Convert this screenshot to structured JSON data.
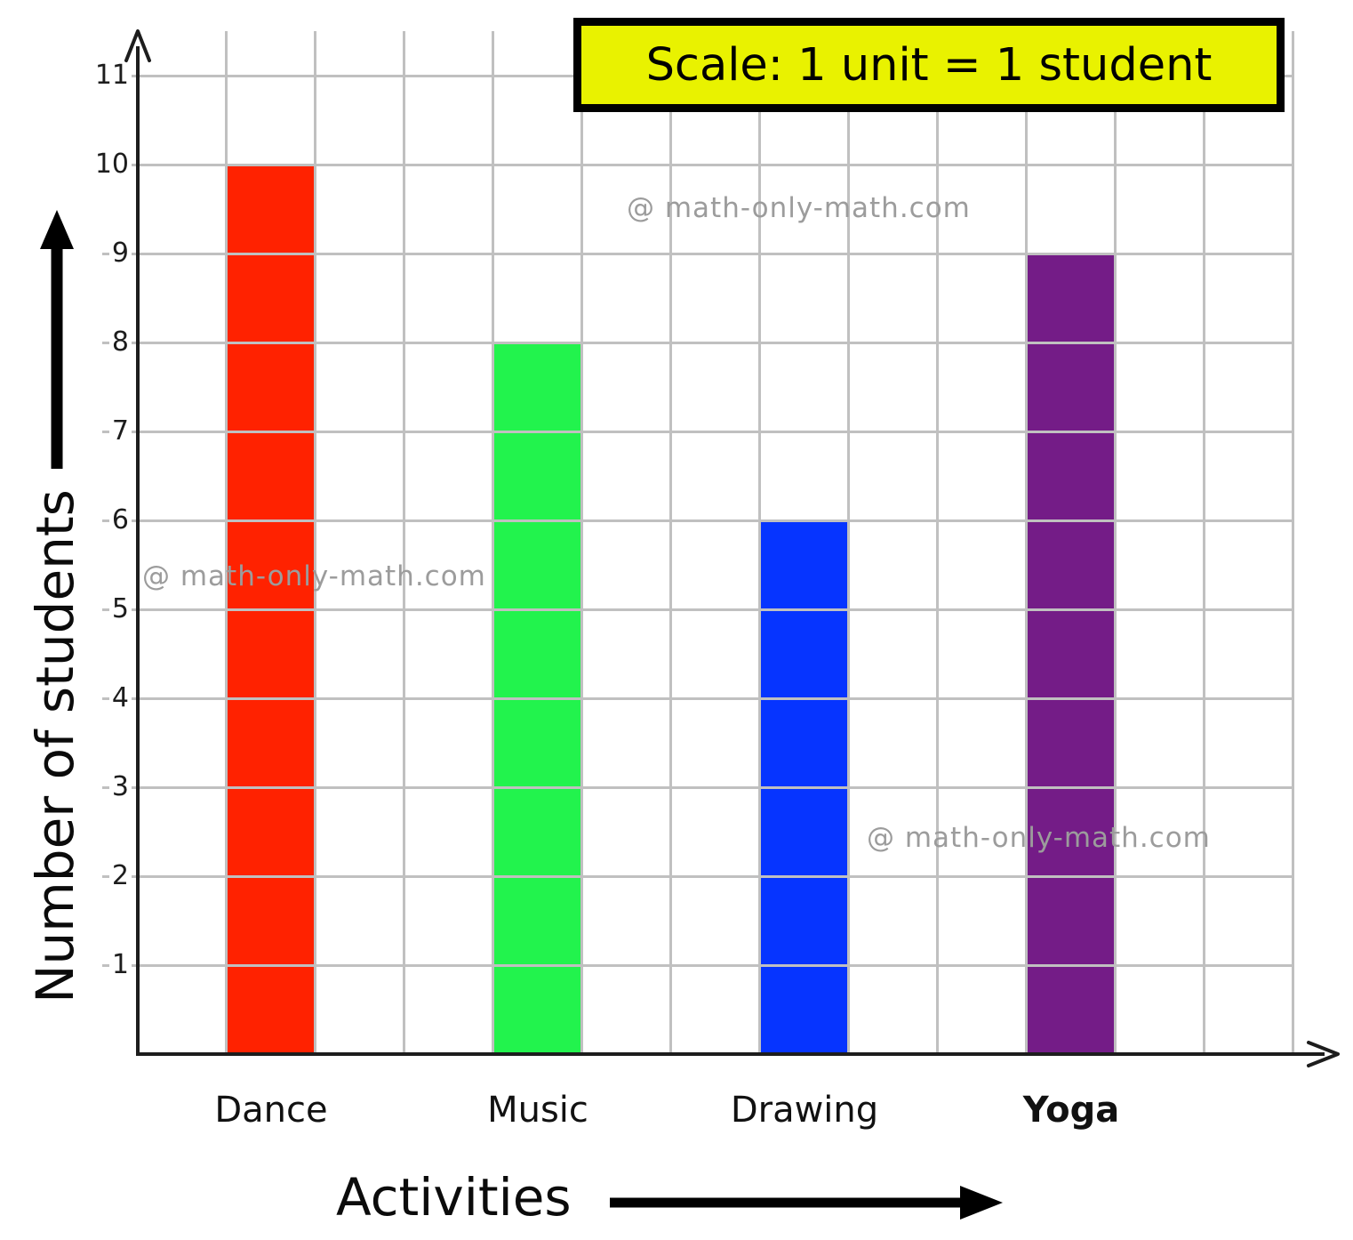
{
  "scale_box": {
    "label": "Scale: 1 unit = 1 student"
  },
  "watermark": {
    "text": "@ math-only-math.com",
    "color": "#9c9c9c"
  },
  "chart_data": {
    "type": "bar",
    "title": "Scale: 1 unit = 1 student",
    "categories": [
      "Dance",
      "Music",
      "Drawing",
      "Yoga"
    ],
    "values": [
      10,
      8,
      6,
      9
    ],
    "bar_colors": [
      "#ff2200",
      "#22f34d",
      "#0634ff",
      "#741c87"
    ],
    "category_bold": [
      false,
      false,
      false,
      true
    ],
    "xlabel": "Activities",
    "ylabel": "Number of students",
    "yticks": [
      1,
      2,
      3,
      4,
      5,
      6,
      7,
      8,
      9,
      10,
      11
    ],
    "ylim": [
      0,
      11.5
    ],
    "xlim_units": [
      0,
      13
    ],
    "grid": true,
    "legend_position": "top-right",
    "axis_color": "#1d1d1d",
    "grid_color": "#c0c0c0",
    "scale_note": "1 unit = 1 student"
  }
}
